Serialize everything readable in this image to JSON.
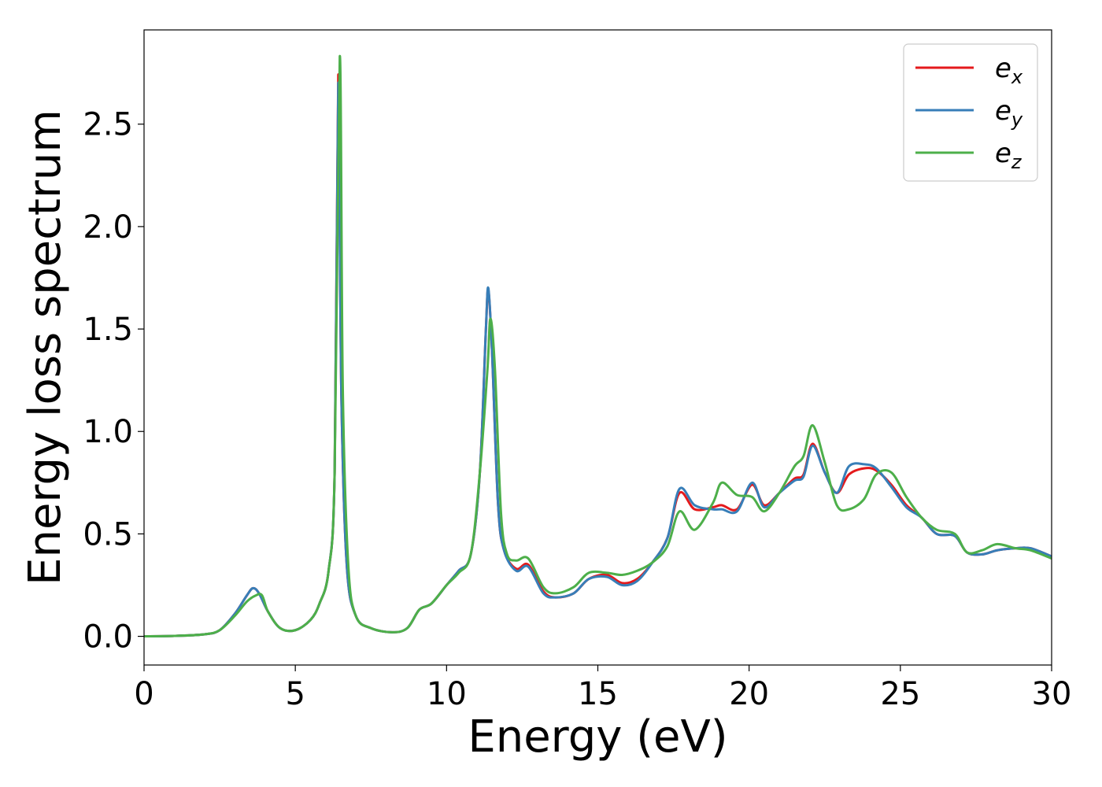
{
  "chart_data": {
    "type": "line",
    "title": "",
    "xlabel": "Energy (eV)",
    "ylabel": "Energy loss spectrum",
    "xlim": [
      0,
      30
    ],
    "ylim": [
      -0.14,
      2.96
    ],
    "x_ticks": [
      0,
      5,
      10,
      15,
      20,
      25,
      30
    ],
    "x_tick_labels": [
      "0",
      "5",
      "10",
      "15",
      "20",
      "25",
      "30"
    ],
    "y_ticks": [
      0.0,
      0.5,
      1.0,
      1.5,
      2.0,
      2.5
    ],
    "y_tick_labels": [
      "0.0",
      "0.5",
      "1.0",
      "1.5",
      "2.0",
      "2.5"
    ],
    "grid": false,
    "legend_position": "top-right",
    "series": [
      {
        "name": "e_x",
        "legend_base": "e",
        "legend_sub": "x",
        "color": "#e41a1c",
        "points": [
          [
            0,
            0.0
          ],
          [
            1,
            0.002
          ],
          [
            2,
            0.01
          ],
          [
            2.5,
            0.03
          ],
          [
            3,
            0.11
          ],
          [
            3.4,
            0.2
          ],
          [
            3.6,
            0.235
          ],
          [
            3.8,
            0.21
          ],
          [
            4.1,
            0.12
          ],
          [
            4.5,
            0.04
          ],
          [
            5,
            0.03
          ],
          [
            5.5,
            0.08
          ],
          [
            5.8,
            0.16
          ],
          [
            6.1,
            0.32
          ],
          [
            6.3,
            0.8
          ],
          [
            6.42,
            2.74
          ],
          [
            6.52,
            1.2
          ],
          [
            6.7,
            0.35
          ],
          [
            7,
            0.1
          ],
          [
            7.5,
            0.04
          ],
          [
            8.2,
            0.02
          ],
          [
            8.7,
            0.04
          ],
          [
            9.1,
            0.13
          ],
          [
            9.5,
            0.16
          ],
          [
            10,
            0.25
          ],
          [
            10.4,
            0.32
          ],
          [
            10.8,
            0.4
          ],
          [
            11.1,
            0.8
          ],
          [
            11.3,
            1.5
          ],
          [
            11.38,
            1.69
          ],
          [
            11.5,
            1.4
          ],
          [
            11.7,
            0.65
          ],
          [
            11.9,
            0.42
          ],
          [
            12.3,
            0.33
          ],
          [
            12.7,
            0.35
          ],
          [
            13.2,
            0.22
          ],
          [
            13.6,
            0.19
          ],
          [
            14.2,
            0.21
          ],
          [
            14.7,
            0.28
          ],
          [
            15.3,
            0.3
          ],
          [
            15.8,
            0.26
          ],
          [
            16.3,
            0.28
          ],
          [
            16.8,
            0.36
          ],
          [
            17.3,
            0.48
          ],
          [
            17.7,
            0.7
          ],
          [
            18.2,
            0.62
          ],
          [
            18.8,
            0.63
          ],
          [
            19.1,
            0.64
          ],
          [
            19.6,
            0.62
          ],
          [
            20.1,
            0.74
          ],
          [
            20.5,
            0.64
          ],
          [
            21,
            0.7
          ],
          [
            21.5,
            0.77
          ],
          [
            21.8,
            0.79
          ],
          [
            22.1,
            0.94
          ],
          [
            22.5,
            0.8
          ],
          [
            22.9,
            0.7
          ],
          [
            23.3,
            0.79
          ],
          [
            23.8,
            0.82
          ],
          [
            24.2,
            0.81
          ],
          [
            24.7,
            0.74
          ],
          [
            25.2,
            0.64
          ],
          [
            25.7,
            0.58
          ],
          [
            26.2,
            0.5
          ],
          [
            26.8,
            0.49
          ],
          [
            27.2,
            0.41
          ],
          [
            27.7,
            0.4
          ],
          [
            28.2,
            0.42
          ],
          [
            28.8,
            0.43
          ],
          [
            29.3,
            0.43
          ],
          [
            30,
            0.39
          ]
        ]
      },
      {
        "name": "e_y",
        "legend_base": "e",
        "legend_sub": "y",
        "color": "#377eb8",
        "points": [
          [
            0,
            0.0
          ],
          [
            1,
            0.002
          ],
          [
            2,
            0.01
          ],
          [
            2.5,
            0.03
          ],
          [
            3,
            0.11
          ],
          [
            3.4,
            0.2
          ],
          [
            3.6,
            0.235
          ],
          [
            3.8,
            0.21
          ],
          [
            4.1,
            0.12
          ],
          [
            4.5,
            0.04
          ],
          [
            5,
            0.03
          ],
          [
            5.5,
            0.08
          ],
          [
            5.8,
            0.16
          ],
          [
            6.1,
            0.32
          ],
          [
            6.3,
            0.8
          ],
          [
            6.42,
            2.7
          ],
          [
            6.52,
            1.2
          ],
          [
            6.7,
            0.35
          ],
          [
            7,
            0.1
          ],
          [
            7.5,
            0.04
          ],
          [
            8.2,
            0.02
          ],
          [
            8.7,
            0.04
          ],
          [
            9.1,
            0.13
          ],
          [
            9.5,
            0.16
          ],
          [
            10,
            0.25
          ],
          [
            10.4,
            0.32
          ],
          [
            10.8,
            0.4
          ],
          [
            11.1,
            0.8
          ],
          [
            11.3,
            1.5
          ],
          [
            11.38,
            1.7
          ],
          [
            11.5,
            1.4
          ],
          [
            11.7,
            0.65
          ],
          [
            11.9,
            0.42
          ],
          [
            12.3,
            0.32
          ],
          [
            12.7,
            0.34
          ],
          [
            13.2,
            0.21
          ],
          [
            13.6,
            0.19
          ],
          [
            14.2,
            0.21
          ],
          [
            14.7,
            0.28
          ],
          [
            15.3,
            0.29
          ],
          [
            15.8,
            0.25
          ],
          [
            16.3,
            0.27
          ],
          [
            16.8,
            0.36
          ],
          [
            17.3,
            0.48
          ],
          [
            17.7,
            0.72
          ],
          [
            18.2,
            0.64
          ],
          [
            18.8,
            0.62
          ],
          [
            19.1,
            0.62
          ],
          [
            19.6,
            0.61
          ],
          [
            20.1,
            0.75
          ],
          [
            20.5,
            0.63
          ],
          [
            21,
            0.7
          ],
          [
            21.5,
            0.76
          ],
          [
            21.8,
            0.78
          ],
          [
            22.1,
            0.93
          ],
          [
            22.5,
            0.8
          ],
          [
            22.9,
            0.7
          ],
          [
            23.3,
            0.83
          ],
          [
            23.8,
            0.84
          ],
          [
            24.2,
            0.82
          ],
          [
            24.7,
            0.73
          ],
          [
            25.2,
            0.63
          ],
          [
            25.7,
            0.58
          ],
          [
            26.2,
            0.5
          ],
          [
            26.8,
            0.49
          ],
          [
            27.2,
            0.41
          ],
          [
            27.7,
            0.4
          ],
          [
            28.2,
            0.42
          ],
          [
            28.8,
            0.43
          ],
          [
            29.3,
            0.43
          ],
          [
            30,
            0.39
          ]
        ]
      },
      {
        "name": "e_z",
        "legend_base": "e",
        "legend_sub": "z",
        "color": "#4daf4a",
        "points": [
          [
            0,
            0.0
          ],
          [
            1,
            0.002
          ],
          [
            2,
            0.01
          ],
          [
            2.5,
            0.03
          ],
          [
            3,
            0.1
          ],
          [
            3.4,
            0.17
          ],
          [
            3.7,
            0.2
          ],
          [
            3.9,
            0.2
          ],
          [
            4.1,
            0.12
          ],
          [
            4.5,
            0.04
          ],
          [
            5,
            0.03
          ],
          [
            5.5,
            0.08
          ],
          [
            5.8,
            0.16
          ],
          [
            6.1,
            0.32
          ],
          [
            6.3,
            0.8
          ],
          [
            6.47,
            2.83
          ],
          [
            6.57,
            1.2
          ],
          [
            6.75,
            0.35
          ],
          [
            7,
            0.1
          ],
          [
            7.5,
            0.04
          ],
          [
            8.2,
            0.02
          ],
          [
            8.7,
            0.04
          ],
          [
            9.1,
            0.13
          ],
          [
            9.5,
            0.16
          ],
          [
            10,
            0.25
          ],
          [
            10.4,
            0.31
          ],
          [
            10.8,
            0.4
          ],
          [
            11.1,
            0.8
          ],
          [
            11.35,
            1.3
          ],
          [
            11.45,
            1.55
          ],
          [
            11.6,
            1.3
          ],
          [
            11.8,
            0.6
          ],
          [
            12,
            0.4
          ],
          [
            12.3,
            0.37
          ],
          [
            12.7,
            0.38
          ],
          [
            13.2,
            0.24
          ],
          [
            13.6,
            0.21
          ],
          [
            14.2,
            0.24
          ],
          [
            14.7,
            0.31
          ],
          [
            15.3,
            0.31
          ],
          [
            15.8,
            0.3
          ],
          [
            16.3,
            0.32
          ],
          [
            16.8,
            0.36
          ],
          [
            17.3,
            0.44
          ],
          [
            17.7,
            0.61
          ],
          [
            18.2,
            0.52
          ],
          [
            18.8,
            0.65
          ],
          [
            19.1,
            0.75
          ],
          [
            19.6,
            0.69
          ],
          [
            20.1,
            0.68
          ],
          [
            20.5,
            0.61
          ],
          [
            21,
            0.7
          ],
          [
            21.5,
            0.83
          ],
          [
            21.8,
            0.88
          ],
          [
            22.1,
            1.03
          ],
          [
            22.5,
            0.85
          ],
          [
            22.9,
            0.64
          ],
          [
            23.3,
            0.62
          ],
          [
            23.8,
            0.67
          ],
          [
            24.2,
            0.79
          ],
          [
            24.7,
            0.8
          ],
          [
            25.2,
            0.68
          ],
          [
            25.7,
            0.58
          ],
          [
            26.2,
            0.52
          ],
          [
            26.8,
            0.5
          ],
          [
            27.2,
            0.41
          ],
          [
            27.7,
            0.42
          ],
          [
            28.2,
            0.45
          ],
          [
            28.8,
            0.43
          ],
          [
            29.3,
            0.42
          ],
          [
            30,
            0.38
          ]
        ]
      }
    ]
  }
}
